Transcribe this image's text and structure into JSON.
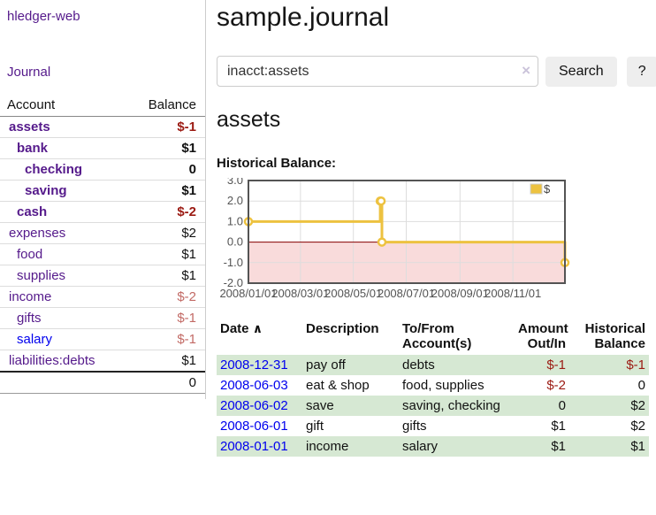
{
  "sidebar": {
    "brand": "hledger-web",
    "nav": {
      "journal_label": "Journal"
    },
    "table": {
      "account_header": "Account",
      "balance_header": "Balance",
      "accounts": [
        {
          "label": "assets",
          "balance": "$-1",
          "level": 1,
          "matched": true,
          "balance_tone": "negative-strong",
          "link_tone": "visited"
        },
        {
          "label": "bank",
          "balance": "$1",
          "level": 2,
          "matched": true,
          "balance_tone": "normal",
          "link_tone": "visited"
        },
        {
          "label": "checking",
          "balance": "0",
          "level": 3,
          "matched": true,
          "balance_tone": "normal",
          "link_tone": "visited"
        },
        {
          "label": "saving",
          "balance": "$1",
          "level": 3,
          "matched": true,
          "balance_tone": "normal",
          "link_tone": "visited"
        },
        {
          "label": "cash",
          "balance": "$-2",
          "level": 2,
          "matched": true,
          "balance_tone": "negative-strong",
          "link_tone": "visited"
        },
        {
          "label": "expenses",
          "balance": "$2",
          "level": 1,
          "matched": false,
          "balance_tone": "normal",
          "link_tone": "visited"
        },
        {
          "label": "food",
          "balance": "$1",
          "level": 2,
          "matched": false,
          "balance_tone": "normal",
          "link_tone": "visited"
        },
        {
          "label": "supplies",
          "balance": "$1",
          "level": 2,
          "matched": false,
          "balance_tone": "normal",
          "link_tone": "visited"
        },
        {
          "label": "income",
          "balance": "$-2",
          "level": 1,
          "matched": false,
          "balance_tone": "negative-soft",
          "link_tone": "visited"
        },
        {
          "label": "gifts",
          "balance": "$-1",
          "level": 2,
          "matched": false,
          "balance_tone": "negative-soft",
          "link_tone": "visited"
        },
        {
          "label": "salary",
          "balance": "$-1",
          "level": 2,
          "matched": false,
          "balance_tone": "negative-soft",
          "link_tone": "unvisited"
        },
        {
          "label": "liabilities:debts",
          "balance": "$1",
          "level": 1,
          "matched": false,
          "balance_tone": "normal",
          "link_tone": "visited"
        }
      ],
      "total": "0"
    }
  },
  "header": {
    "title": "sample.journal"
  },
  "search": {
    "query": "inacct:assets",
    "clear_icon": "×",
    "button_label": "Search",
    "help_label": "?"
  },
  "account_page": {
    "heading": "assets",
    "chart_label": "Historical Balance:"
  },
  "chart_data": {
    "type": "line",
    "title": "Historical Balance:",
    "step": true,
    "series": [
      {
        "name": "$",
        "color": "#edc240",
        "points": [
          {
            "date": "2008-01-01",
            "day": 0,
            "value": 1
          },
          {
            "date": "2008-06-01",
            "day": 152,
            "value": 2
          },
          {
            "date": "2008-06-02",
            "day": 153,
            "value": 2
          },
          {
            "date": "2008-06-03",
            "day": 154,
            "value": 0
          },
          {
            "date": "2008-12-31",
            "day": 365,
            "value": -1
          }
        ]
      }
    ],
    "ylim": [
      -2,
      3
    ],
    "yticks": [
      3.0,
      2.0,
      1.0,
      0.0,
      -1.0,
      -2.0
    ],
    "xlim_days": [
      0,
      365
    ],
    "xticks": [
      {
        "day": 0,
        "label": "2008/01/01"
      },
      {
        "day": 60,
        "label": "2008/03/01"
      },
      {
        "day": 121,
        "label": "2008/05/01"
      },
      {
        "day": 182,
        "label": "2008/07/01"
      },
      {
        "day": 244,
        "label": "2008/09/01"
      },
      {
        "day": 305,
        "label": "2008/11/01"
      }
    ],
    "legend": {
      "label": "$",
      "position": "top-right"
    },
    "grid": true,
    "colors": {
      "line": "#edc240",
      "negative_region": "#f9dbdb",
      "zero_line": "#8b0000",
      "gridline": "#dddddd",
      "plot_border": "#545454",
      "tick_label": "#545454"
    }
  },
  "register": {
    "columns": {
      "date": "Date",
      "description": "Description",
      "tofrom": "To/From Account(s)",
      "amount": "Amount Out/In",
      "balance": "Historical Balance"
    },
    "sort_asc_icon": "∧",
    "rows": [
      {
        "date": "2008-12-31",
        "description": "pay off",
        "accounts": "debts",
        "amount": "$-1",
        "balance": "$-1",
        "amount_tone": "negative",
        "balance_tone": "negative"
      },
      {
        "date": "2008-06-03",
        "description": "eat & shop",
        "accounts": "food, supplies",
        "amount": "$-2",
        "balance": "0",
        "amount_tone": "negative",
        "balance_tone": "normal"
      },
      {
        "date": "2008-06-02",
        "description": "save",
        "accounts": "saving, checking",
        "amount": "0",
        "balance": "$2",
        "amount_tone": "normal",
        "balance_tone": "normal"
      },
      {
        "date": "2008-06-01",
        "description": "gift",
        "accounts": "gifts",
        "amount": "$1",
        "balance": "$2",
        "amount_tone": "normal",
        "balance_tone": "normal"
      },
      {
        "date": "2008-01-01",
        "description": "income",
        "accounts": "salary",
        "amount": "$1",
        "balance": "$1",
        "amount_tone": "normal",
        "balance_tone": "normal"
      }
    ]
  }
}
